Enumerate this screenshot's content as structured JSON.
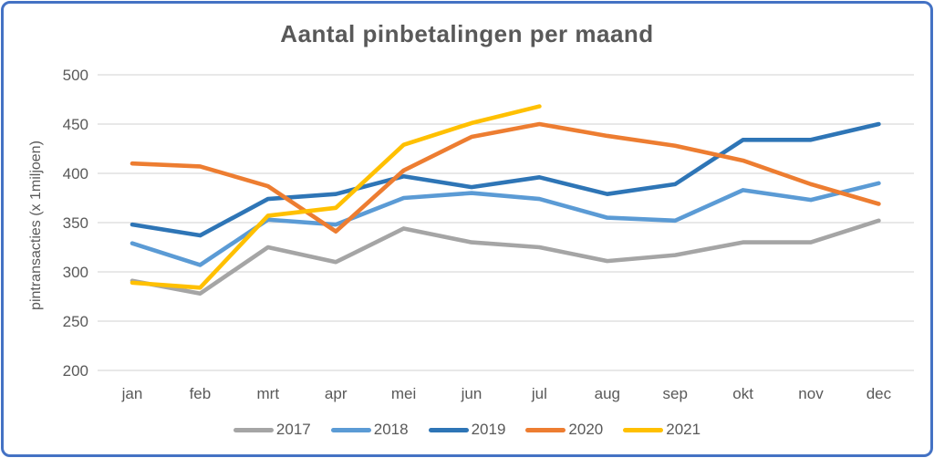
{
  "chart_data": {
    "type": "line",
    "title": "Aantal pinbetalingen per maand",
    "xlabel": "",
    "ylabel": "pintransacties (x 1miljoen)",
    "categories": [
      "jan",
      "feb",
      "mrt",
      "apr",
      "mei",
      "jun",
      "jul",
      "aug",
      "sep",
      "okt",
      "nov",
      "dec"
    ],
    "ylim": [
      200,
      500
    ],
    "yticks": [
      500,
      450,
      400,
      350,
      300,
      250,
      200
    ],
    "grid": true,
    "legend_position": "bottom",
    "series": [
      {
        "name": "2017",
        "color": "#A5A5A5",
        "values": [
          291,
          278,
          325,
          310,
          344,
          330,
          325,
          311,
          317,
          330,
          330,
          352
        ]
      },
      {
        "name": "2018",
        "color": "#5B9BD5",
        "values": [
          329,
          307,
          353,
          348,
          375,
          380,
          374,
          355,
          352,
          383,
          373,
          390
        ]
      },
      {
        "name": "2019",
        "color": "#2E75B6",
        "values": [
          348,
          337,
          374,
          379,
          397,
          386,
          396,
          379,
          389,
          434,
          434,
          450
        ]
      },
      {
        "name": "2020",
        "color": "#ED7D31",
        "values": [
          410,
          407,
          387,
          341,
          403,
          437,
          450,
          438,
          428,
          413,
          389,
          369
        ]
      },
      {
        "name": "2021",
        "color": "#FFC000",
        "values": [
          289,
          284,
          357,
          365,
          429,
          451,
          468,
          null,
          null,
          null,
          null,
          null
        ]
      }
    ]
  },
  "colors": {
    "frame_border": "#4472C4",
    "background": "#FFFFFF",
    "gridline": "#D9D9D9",
    "text": "#595959"
  }
}
